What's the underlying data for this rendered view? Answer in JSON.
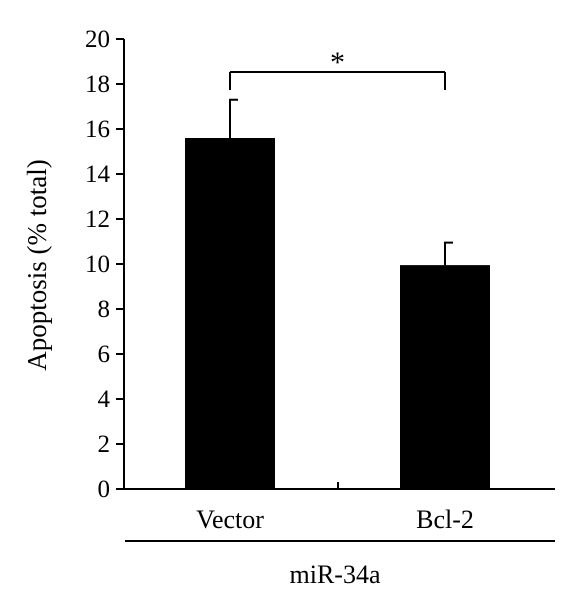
{
  "chart_data": {
    "type": "bar",
    "title": "",
    "xlabel": "",
    "ylabel": "Apoptosis (% total)",
    "categories": [
      "Vector",
      "Bcl-2"
    ],
    "values": [
      15.6,
      9.95
    ],
    "error_up": [
      1.7,
      1.0
    ],
    "ylim": [
      0,
      20
    ],
    "yticks": [
      0,
      2,
      4,
      6,
      8,
      10,
      12,
      14,
      16,
      18,
      20
    ],
    "group_label": "miR-34a",
    "significance": {
      "between": [
        "Vector",
        "Bcl-2"
      ],
      "label": "*"
    },
    "grid": false,
    "legend": "none",
    "bar_color": "#000000"
  }
}
